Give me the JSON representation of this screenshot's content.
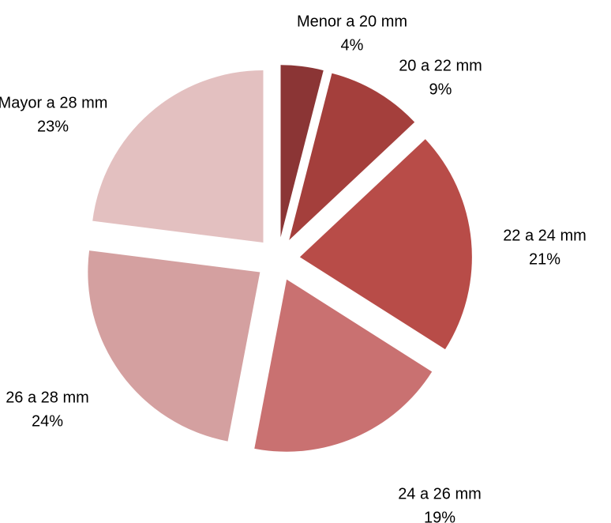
{
  "chart_data": {
    "type": "pie",
    "categories": [
      "Menor a 20 mm",
      "20 a 22 mm",
      "22 a 24 mm",
      "24 a 26 mm",
      "26 a 28 mm",
      "Mayor a 28 mm"
    ],
    "values": [
      4,
      9,
      21,
      19,
      24,
      23
    ],
    "value_labels": [
      "4%",
      "9%",
      "21%",
      "19%",
      "24%",
      "23%"
    ],
    "colors": [
      "#8b3535",
      "#a43f3c",
      "#b84c48",
      "#c97171",
      "#d4a0a0",
      "#e3c0c0"
    ]
  }
}
